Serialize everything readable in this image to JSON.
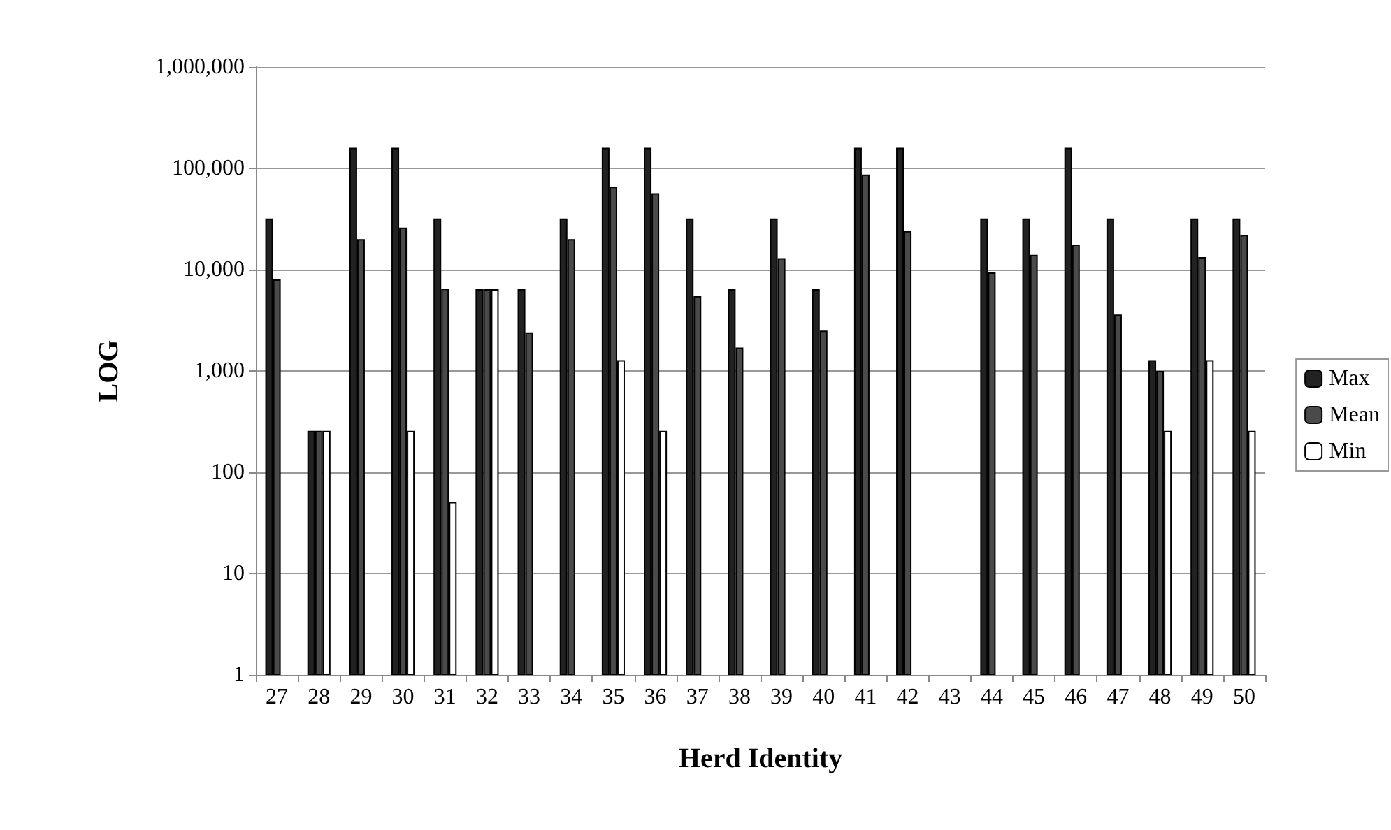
{
  "chart_data": {
    "type": "bar",
    "xlabel": "Herd Identity",
    "ylabel": "LOG",
    "categories": [
      "27",
      "28",
      "29",
      "30",
      "31",
      "32",
      "33",
      "34",
      "35",
      "36",
      "37",
      "38",
      "39",
      "40",
      "41",
      "42",
      "43",
      "44",
      "45",
      "46",
      "47",
      "48",
      "49",
      "50"
    ],
    "series": [
      {
        "name": "Max",
        "color": "#222222",
        "values": [
          32000,
          256,
          160000,
          160000,
          32000,
          6400,
          6400,
          32000,
          160000,
          160000,
          32000,
          6400,
          32000,
          6400,
          160000,
          160000,
          null,
          32000,
          32000,
          160000,
          32000,
          1280,
          32000,
          32000
        ]
      },
      {
        "name": "Mean",
        "color": "#4a4a4a",
        "values": [
          8000,
          256,
          20000,
          26000,
          6500,
          6400,
          2400,
          20000,
          66000,
          57000,
          5500,
          1700,
          13000,
          2500,
          87000,
          24000,
          null,
          9400,
          14000,
          17700,
          3600,
          1000,
          13300,
          22000
        ]
      },
      {
        "name": "Min",
        "color": "#ffffff",
        "values": [
          null,
          256,
          null,
          256,
          51,
          6400,
          null,
          null,
          1280,
          256,
          null,
          null,
          null,
          null,
          null,
          null,
          null,
          null,
          null,
          null,
          null,
          256,
          1280,
          256
        ]
      }
    ],
    "log": true,
    "ylim": [
      1,
      1000000
    ],
    "yticks": [
      {
        "value": 1,
        "label": "1"
      },
      {
        "value": 10,
        "label": "10"
      },
      {
        "value": 100,
        "label": "100"
      },
      {
        "value": 1000,
        "label": "1,000"
      },
      {
        "value": 10000,
        "label": "10,000"
      },
      {
        "value": 100000,
        "label": "100,000"
      },
      {
        "value": 1000000,
        "label": "1,000,000"
      }
    ],
    "grid": "y",
    "legend": "right"
  }
}
